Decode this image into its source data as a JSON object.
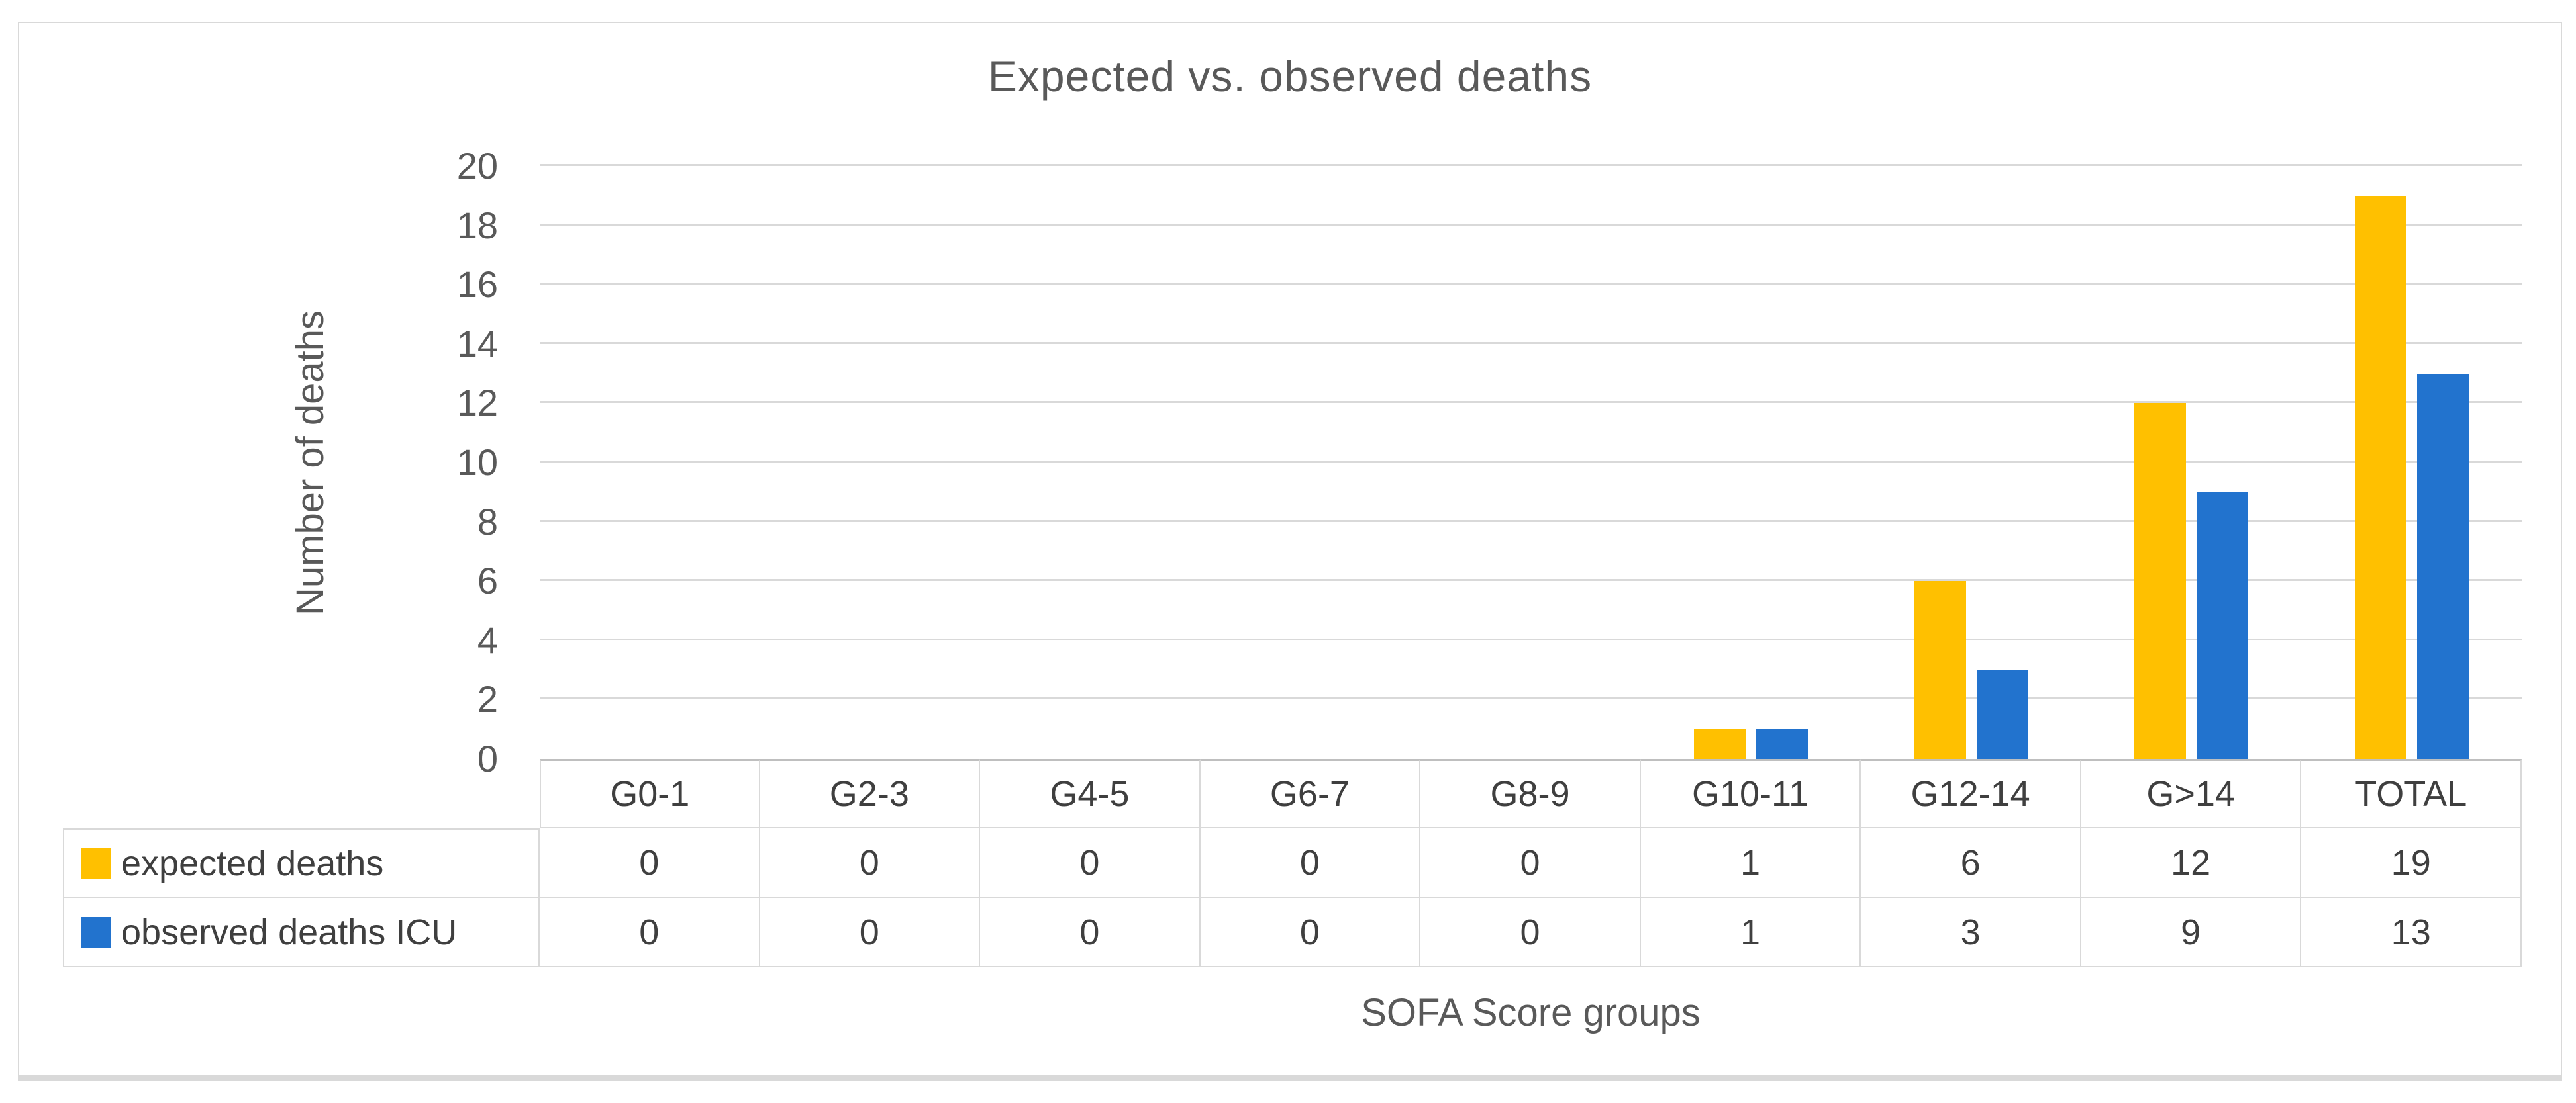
{
  "chart_data": {
    "type": "bar",
    "title": "Expected vs. observed deaths",
    "xlabel": "SOFA Score groups",
    "ylabel": "Number of deaths",
    "categories": [
      "G0-1",
      "G2-3",
      "G4-5",
      "G6-7",
      "G8-9",
      "G10-11",
      "G12-14",
      "G>14",
      "TOTAL"
    ],
    "series": [
      {
        "name": "expected deaths",
        "color": "#FFC000",
        "values": [
          0,
          0,
          0,
          0,
          0,
          1,
          6,
          12,
          19
        ]
      },
      {
        "name": "observed deaths ICU",
        "color": "#2273CE",
        "values": [
          0,
          0,
          0,
          0,
          0,
          1,
          3,
          9,
          13
        ]
      }
    ],
    "ylim": [
      0,
      20
    ],
    "ytick_step": 2,
    "grid": true,
    "legend_position": "data-table-left-column",
    "data_table_shown": true
  }
}
